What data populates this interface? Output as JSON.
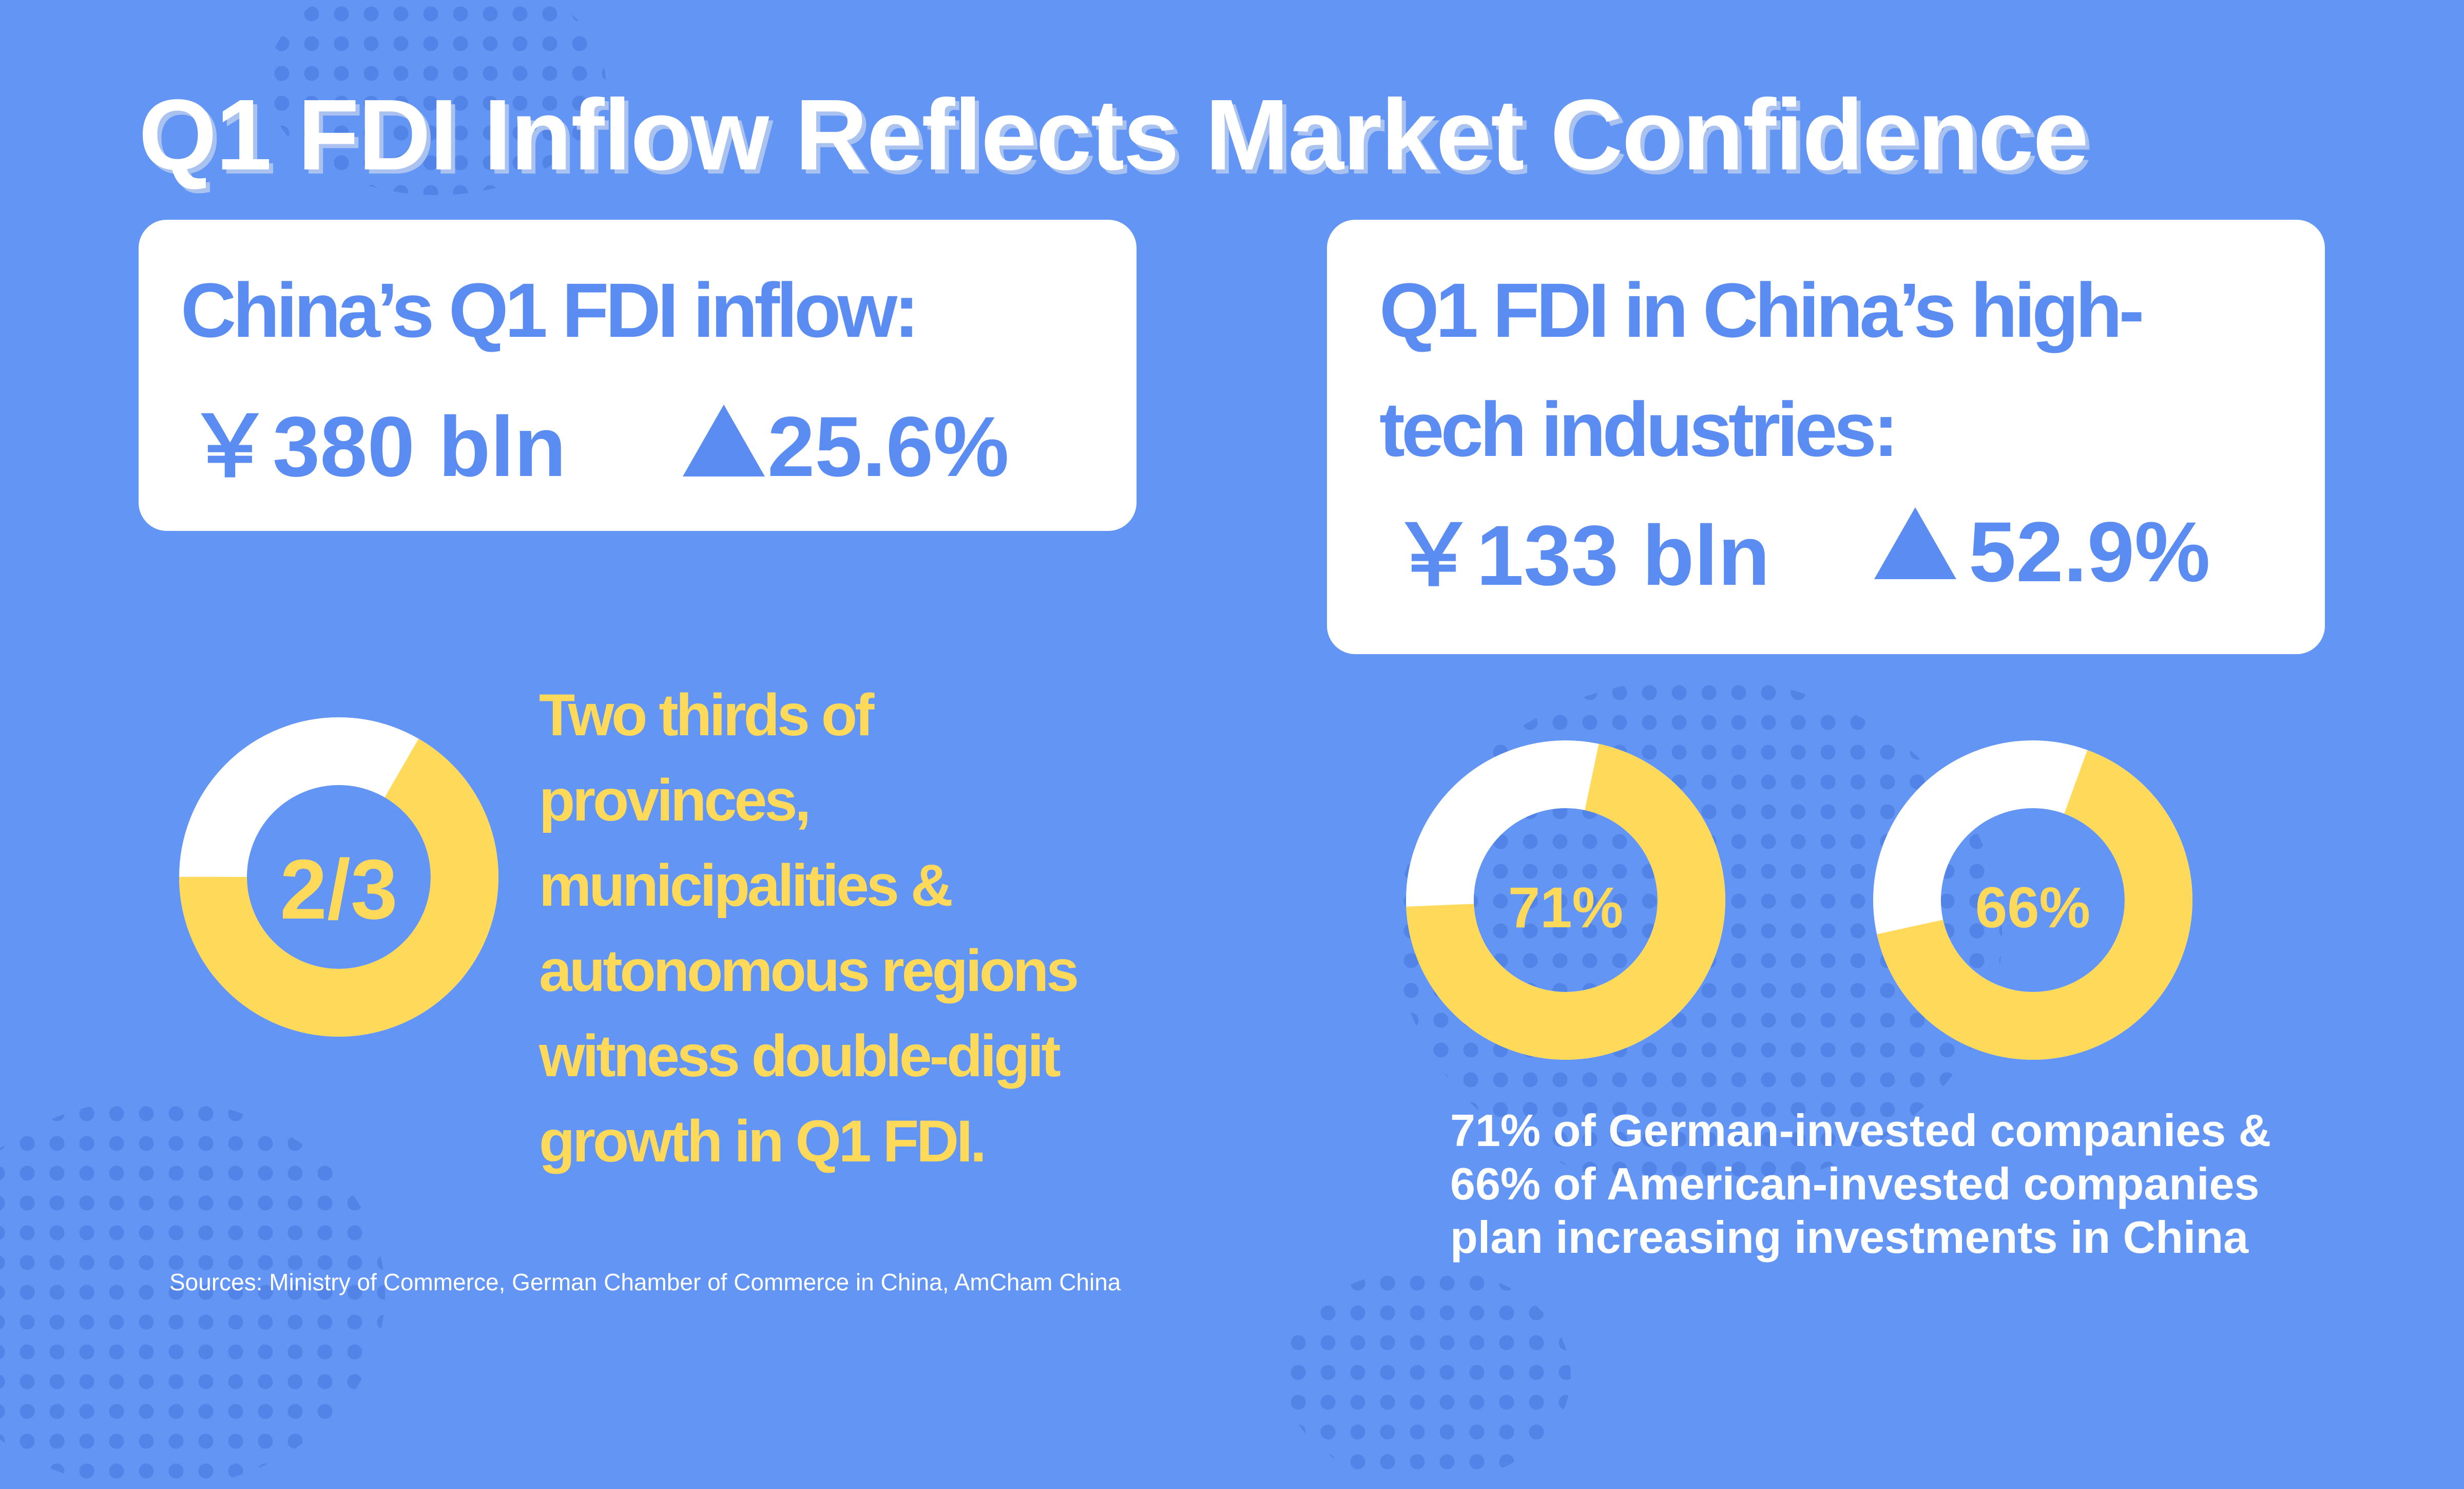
{
  "title": "Q1 FDI Inflow Reflects Market Confidence",
  "card_left": {
    "heading": "China’s Q1 FDI inflow:",
    "amount": "￥380 bln",
    "growth": "25.6%"
  },
  "card_right": {
    "heading_line1": "Q1 FDI in China’s high-",
    "heading_line2": "tech industries:",
    "amount": "￥133 bln",
    "growth": "52.9%"
  },
  "provinces": {
    "donut_label": "2/3",
    "donut_fraction": 0.6667,
    "text_lines": [
      "Two thirds of",
      "provinces,",
      "municipalities &",
      "autonomous regions",
      "witness double-digit",
      "growth in Q1 FDI."
    ]
  },
  "german": {
    "donut_label": "71%",
    "donut_fraction": 0.71
  },
  "american": {
    "donut_label": "66%",
    "donut_fraction": 0.66
  },
  "companies_note_lines": [
    "71% of German-invested companies &",
    "66% of American-invested companies",
    "plan increasing investments in China"
  ],
  "sources": "Sources: Ministry of Commerce, German Chamber of Commerce in China, AmCham China",
  "colors": {
    "background": "#6295f4",
    "card": "#ffffff",
    "accent_blue": "#5b8cf1",
    "accent_yellow": "#ffd95a"
  }
}
